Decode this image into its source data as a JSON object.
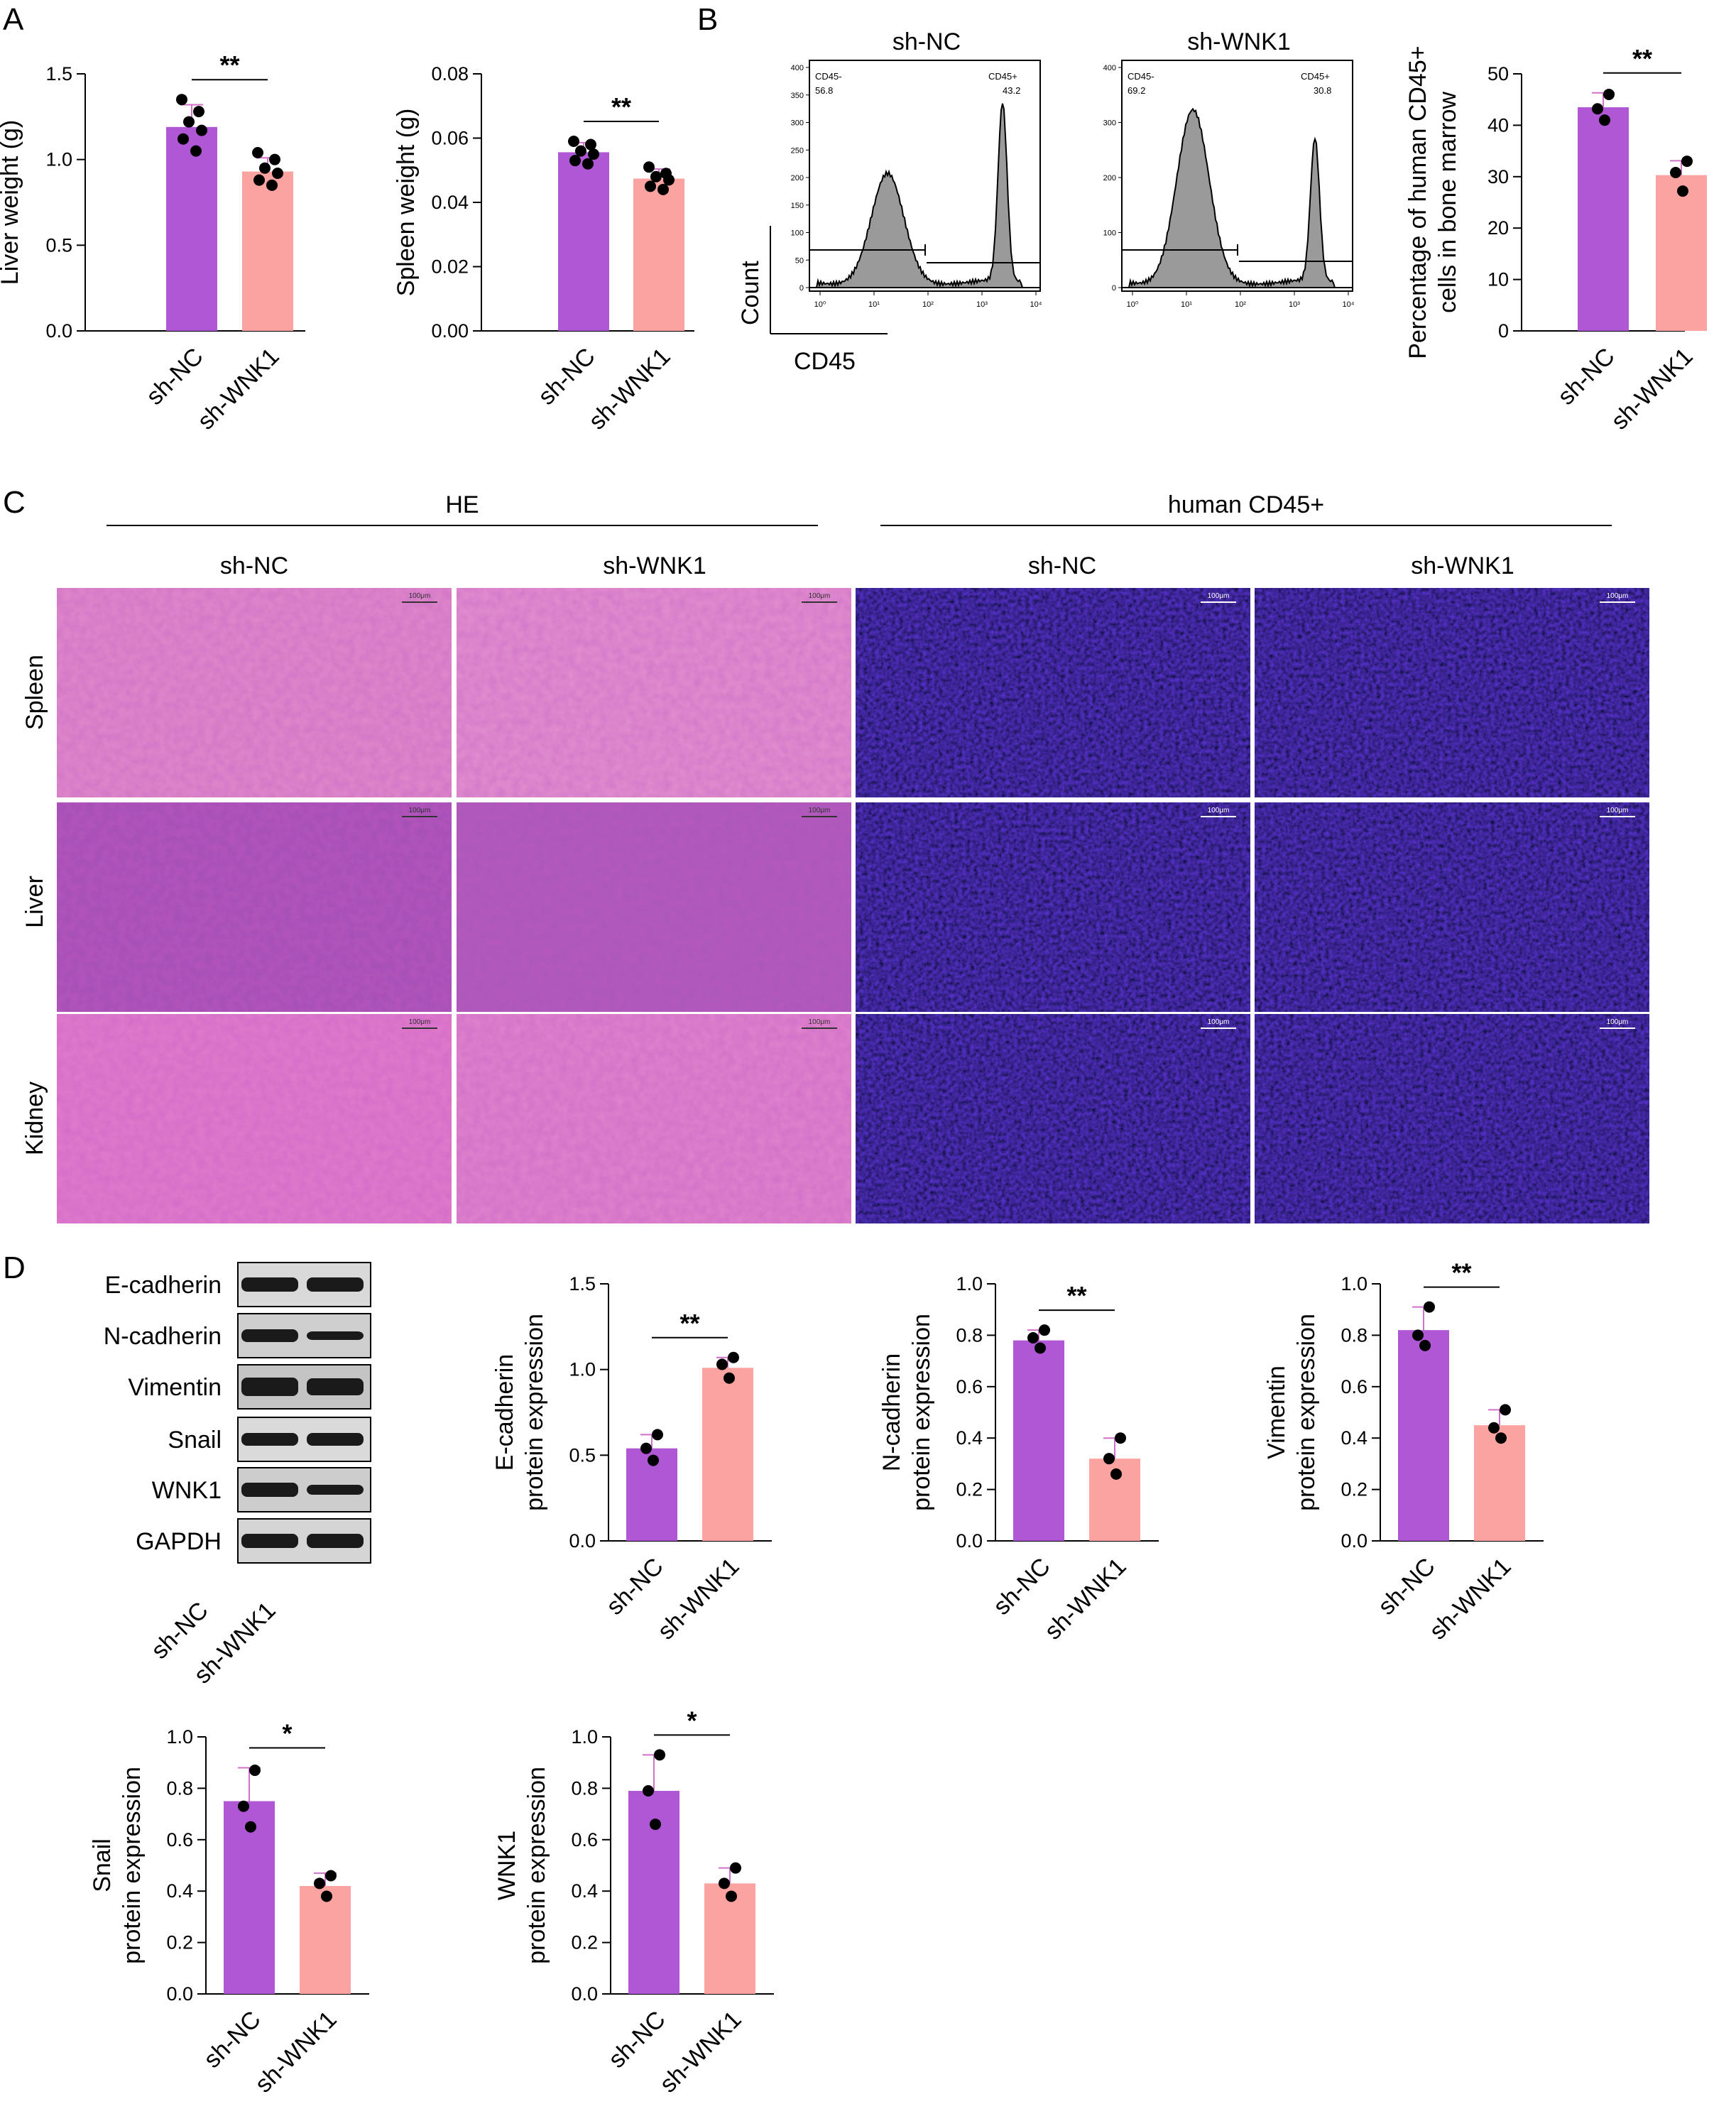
{
  "panels": {
    "A": "A",
    "B": "B",
    "C": "C",
    "D": "D"
  },
  "colors": {
    "sh_NC": "#b057d6",
    "sh_WNK1": "#fba3a0",
    "errorbar": "#d070c8",
    "dot": "#000000"
  },
  "chart_data": [
    {
      "id": "liver",
      "type": "bar",
      "categories": [
        "sh-NC",
        "sh-WNK1"
      ],
      "values": [
        1.19,
        0.93
      ],
      "errors": [
        0.13,
        0.08
      ],
      "points": [
        [
          1.35,
          1.28,
          1.22,
          1.17,
          1.12,
          1.05
        ],
        [
          1.04,
          1.0,
          0.95,
          0.92,
          0.88,
          0.85
        ]
      ],
      "ylabel": "Liver weight (g)",
      "ylim": [
        0,
        1.5
      ],
      "yticks": [
        "0.0",
        "0.5",
        "1.0",
        "1.5"
      ],
      "significance": "**"
    },
    {
      "id": "spleen",
      "type": "bar",
      "categories": [
        "sh-NC",
        "sh-WNK1"
      ],
      "values": [
        0.0556,
        0.0474
      ],
      "errors": [
        0.003,
        0.003
      ],
      "points": [
        [
          0.059,
          0.058,
          0.056,
          0.055,
          0.053,
          0.052
        ],
        [
          0.051,
          0.049,
          0.048,
          0.047,
          0.045,
          0.044
        ]
      ],
      "ylabel": "Spleen weight (g)",
      "ylim": [
        0,
        0.08
      ],
      "yticks": [
        "0.00",
        "0.02",
        "0.04",
        "0.06",
        "0.08"
      ],
      "significance": "**"
    },
    {
      "id": "cd45",
      "type": "bar",
      "categories": [
        "sh-NC",
        "sh-WNK1"
      ],
      "values": [
        43.5,
        30.3
      ],
      "errors": [
        2.8,
        2.8
      ],
      "points": [
        [
          46.0,
          43.2,
          41.0
        ],
        [
          33.0,
          30.8,
          27.2
        ]
      ],
      "ylabel": "Percentage of human CD45+ cells in bone marrow",
      "ylabel_lines": [
        "Percentage of human CD45+",
        "cells in bone marrow"
      ],
      "ylim": [
        0,
        50
      ],
      "yticks": [
        "0",
        "10",
        "20",
        "30",
        "40",
        "50"
      ],
      "significance": "**"
    },
    {
      "id": "ecad",
      "type": "bar",
      "categories": [
        "sh-NC",
        "sh-WNK1"
      ],
      "values": [
        0.54,
        1.01
      ],
      "errors": [
        0.08,
        0.06
      ],
      "points": [
        [
          0.62,
          0.54,
          0.47
        ],
        [
          1.07,
          1.03,
          0.95
        ]
      ],
      "ylabel": "E-cadherin protein expression",
      "ylabel_lines": [
        "E-cadherin",
        "protein expression"
      ],
      "ylim": [
        0,
        1.5
      ],
      "yticks": [
        "0.0",
        "0.5",
        "1.0",
        "1.5"
      ],
      "significance": "**"
    },
    {
      "id": "ncad",
      "type": "bar",
      "categories": [
        "sh-NC",
        "sh-WNK1"
      ],
      "values": [
        0.78,
        0.32
      ],
      "errors": [
        0.04,
        0.08
      ],
      "points": [
        [
          0.82,
          0.79,
          0.75
        ],
        [
          0.4,
          0.32,
          0.26
        ]
      ],
      "ylabel": "N-cadherin protein expression",
      "ylabel_lines": [
        "N-cadherin",
        "protein expression"
      ],
      "ylim": [
        0,
        1.0
      ],
      "yticks": [
        "0.0",
        "0.2",
        "0.4",
        "0.6",
        "0.8",
        "1.0"
      ],
      "significance": "**"
    },
    {
      "id": "vim",
      "type": "bar",
      "categories": [
        "sh-NC",
        "sh-WNK1"
      ],
      "values": [
        0.82,
        0.45
      ],
      "errors": [
        0.09,
        0.06
      ],
      "points": [
        [
          0.91,
          0.8,
          0.76
        ],
        [
          0.51,
          0.44,
          0.4
        ]
      ],
      "ylabel": "Vimentin protein expression",
      "ylabel_lines": [
        "Vimentin",
        "protein expression"
      ],
      "ylim": [
        0,
        1.0
      ],
      "yticks": [
        "0.0",
        "0.2",
        "0.4",
        "0.6",
        "0.8",
        "1.0"
      ],
      "significance": "**"
    },
    {
      "id": "snail",
      "type": "bar",
      "categories": [
        "sh-NC",
        "sh-WNK1"
      ],
      "values": [
        0.75,
        0.42
      ],
      "errors": [
        0.13,
        0.05
      ],
      "points": [
        [
          0.87,
          0.73,
          0.65
        ],
        [
          0.46,
          0.43,
          0.38
        ]
      ],
      "ylabel": "Snail protein expression",
      "ylabel_lines": [
        "Snail",
        "protein expression"
      ],
      "ylim": [
        0,
        1.0
      ],
      "yticks": [
        "0.0",
        "0.2",
        "0.4",
        "0.6",
        "0.8",
        "1.0"
      ],
      "significance": "*"
    },
    {
      "id": "wnk1",
      "type": "bar",
      "categories": [
        "sh-NC",
        "sh-WNK1"
      ],
      "values": [
        0.79,
        0.43
      ],
      "errors": [
        0.14,
        0.06
      ],
      "points": [
        [
          0.93,
          0.79,
          0.66
        ],
        [
          0.49,
          0.43,
          0.38
        ]
      ],
      "ylabel": "WNK1 protein expression",
      "ylabel_lines": [
        "WNK1",
        "protein expression"
      ],
      "ylim": [
        0,
        1.0
      ],
      "yticks": [
        "0.0",
        "0.2",
        "0.4",
        "0.6",
        "0.8",
        "1.0"
      ],
      "significance": "*"
    }
  ],
  "flow": {
    "titles": [
      "sh-NC",
      "sh-WNK1"
    ],
    "xlabel": "CD45",
    "ylabel": "Count",
    "nc": {
      "neg_label": "CD45-",
      "neg_value": "56.8",
      "pos_label": "CD45+",
      "pos_value": "43.2",
      "yticks": [
        "0",
        "50",
        "100",
        "150",
        "200",
        "250",
        "300",
        "350",
        "400"
      ]
    },
    "wnk1": {
      "neg_label": "CD45-",
      "neg_value": "69.2",
      "pos_label": "CD45+",
      "pos_value": "30.8",
      "yticks": [
        "0",
        "100",
        "200",
        "300",
        "400"
      ]
    },
    "xticks": [
      "10⁰",
      "10¹",
      "10²",
      "10³",
      "10⁴"
    ]
  },
  "histology": {
    "group_he": "HE",
    "group_cd45": "human CD45+",
    "columns": [
      "sh-NC",
      "sh-WNK1",
      "sh-NC",
      "sh-WNK1"
    ],
    "rows": [
      "Spleen",
      "Liver",
      "Kidney"
    ],
    "scale_bar": "100μm"
  },
  "western": {
    "proteins": [
      "E-cadherin",
      "N-cadherin",
      "Vimentin",
      "Snail",
      "WNK1",
      "GAPDH"
    ],
    "lanes": [
      "sh-NC",
      "sh-WNK1"
    ]
  }
}
